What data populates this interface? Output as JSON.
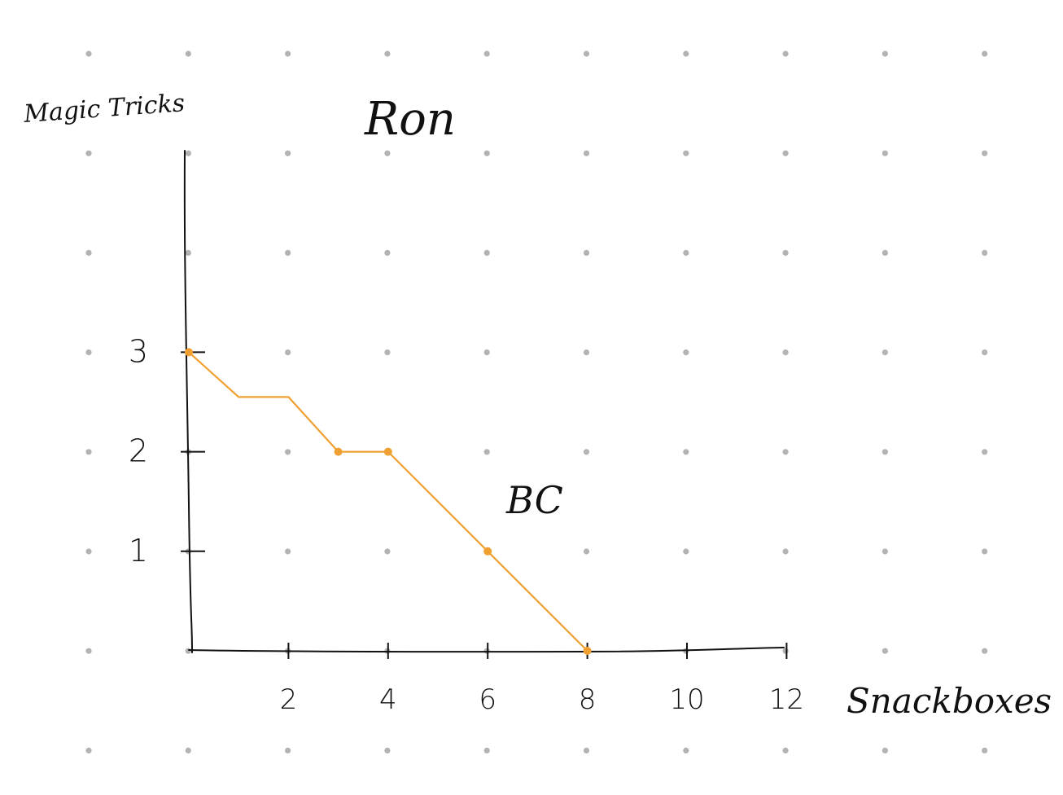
{
  "colors": {
    "background": "#ffffff",
    "grid_dot": "#b3b3b3",
    "ink": "#111111",
    "curve": "#f0a030"
  },
  "chart_data": {
    "type": "line",
    "title": "Ron",
    "xlabel": "Snackboxes",
    "ylabel": "Magic Tricks",
    "xlim": [
      0,
      12
    ],
    "ylim": [
      0,
      3
    ],
    "x_ticks": [
      "2",
      "4",
      "6",
      "8",
      "10",
      "12"
    ],
    "y_ticks": [
      "1",
      "2",
      "3"
    ],
    "grid": "dot grid",
    "series": [
      {
        "name": "BC",
        "x": [
          0,
          1,
          2,
          3,
          4,
          6,
          8
        ],
        "y": [
          3,
          2.55,
          2.55,
          2,
          2,
          1,
          0
        ]
      }
    ]
  }
}
